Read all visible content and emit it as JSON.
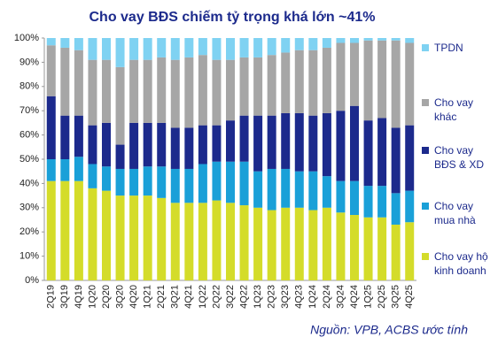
{
  "chart_data": {
    "type": "stacked_bar",
    "title": "Cho vay BĐS chiếm tỷ trọng khá lớn ~41%",
    "source": "Nguồn: VPB, ACBS ước tính",
    "categories": [
      "2Q19",
      "3Q19",
      "4Q19",
      "1Q20",
      "2Q20",
      "3Q20",
      "4Q20",
      "1Q21",
      "2Q21",
      "3Q21",
      "4Q21",
      "1Q22",
      "2Q22",
      "3Q22",
      "4Q22",
      "1Q23",
      "2Q23",
      "3Q23",
      "4Q23",
      "1Q24",
      "2Q24",
      "3Q24",
      "4Q24",
      "1Q25",
      "2Q25",
      "3Q25",
      "4Q25"
    ],
    "series": [
      {
        "name": "Cho vay hộ kinh doanh",
        "color": "#d4dc2a",
        "values": [
          41,
          41,
          41,
          38,
          37,
          35,
          35,
          35,
          34,
          32,
          32,
          32,
          33,
          32,
          31,
          30,
          29,
          30,
          30,
          29,
          30,
          28,
          27,
          26,
          26,
          23,
          24
        ]
      },
      {
        "name": "Cho vay mua nhà",
        "color": "#1aa0d8",
        "values": [
          9,
          9,
          10,
          10,
          10,
          11,
          11,
          12,
          13,
          14,
          14,
          16,
          16,
          17,
          18,
          15,
          17,
          16,
          15,
          16,
          13,
          13,
          14,
          13,
          13,
          13,
          13
        ]
      },
      {
        "name": "Cho vay BĐS & XD",
        "color": "#1c2a8c",
        "values": [
          26,
          18,
          17,
          16,
          18,
          10,
          19,
          18,
          18,
          17,
          17,
          16,
          15,
          17,
          19,
          23,
          22,
          23,
          24,
          23,
          26,
          29,
          31,
          27,
          28,
          27,
          27
        ]
      },
      {
        "name": "Cho vay khác",
        "color": "#a6a6a6",
        "values": [
          21,
          28,
          27,
          27,
          26,
          32,
          26,
          26,
          27,
          28,
          29,
          29,
          27,
          25,
          24,
          24,
          25,
          25,
          26,
          27,
          27,
          28,
          26,
          33,
          32,
          36,
          34
        ]
      },
      {
        "name": "TPDN",
        "color": "#7fd2f2",
        "values": [
          3,
          4,
          5,
          9,
          9,
          12,
          9,
          9,
          8,
          9,
          8,
          7,
          9,
          9,
          8,
          8,
          7,
          6,
          5,
          5,
          4,
          2,
          2,
          1,
          1,
          1,
          2
        ]
      }
    ],
    "ylim": [
      0,
      100
    ],
    "yticks": [
      {
        "value": 0,
        "label": "0%"
      },
      {
        "value": 10,
        "label": "10%"
      },
      {
        "value": 20,
        "label": "20%"
      },
      {
        "value": 30,
        "label": "30%"
      },
      {
        "value": 40,
        "label": "40%"
      },
      {
        "value": 50,
        "label": "50%"
      },
      {
        "value": 60,
        "label": "60%"
      },
      {
        "value": 70,
        "label": "70%"
      },
      {
        "value": 80,
        "label": "80%"
      },
      {
        "value": 90,
        "label": "90%"
      },
      {
        "value": 100,
        "label": "100%"
      }
    ],
    "legend": "right"
  }
}
